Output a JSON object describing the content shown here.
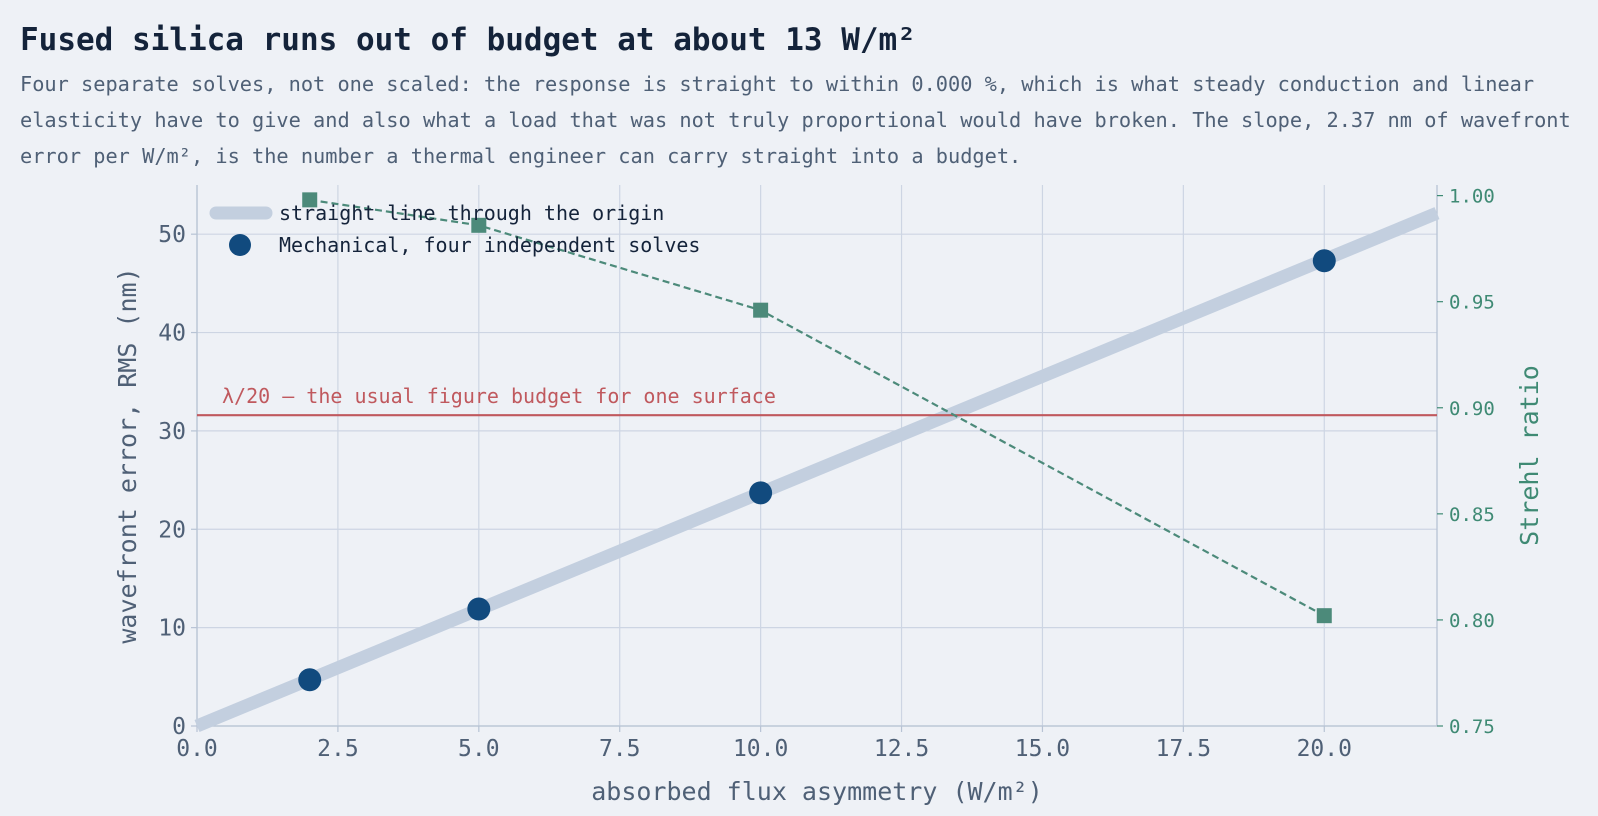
{
  "chart_data": {
    "type": "line",
    "title": "Fused silica runs out of budget at about 13 W/m²",
    "subtitle": "Four separate solves, not one scaled: the response is straight to within 0.000 %, which is what steady conduction and linear elasticity have to give and also what a load that was not truly proportional would have broken. The slope, 2.37 nm of wavefront error per W/m², is the number a thermal engineer can carry straight into a budget.",
    "xlabel": "absorbed flux asymmetry  (W/m²)",
    "ylabel": "wavefront error, RMS  (nm)",
    "y2label": "Strehl ratio",
    "xlim": [
      0,
      22
    ],
    "ylim": [
      0,
      55
    ],
    "y2lim": [
      0.75,
      1.005
    ],
    "xticks": [
      "0.0",
      "2.5",
      "5.0",
      "7.5",
      "10.0",
      "12.5",
      "15.0",
      "17.5",
      "20.0"
    ],
    "yticks": [
      "0",
      "10",
      "20",
      "30",
      "40",
      "50"
    ],
    "y2ticks": [
      "0.75",
      "0.80",
      "0.85",
      "0.90",
      "0.95",
      "1.00"
    ],
    "grid": true,
    "legend_position": "top-left",
    "series": [
      {
        "name": "straight line through the origin",
        "kind": "line",
        "color": "#c3cfdf",
        "slope": 2.37,
        "x": [
          0,
          22
        ],
        "y": [
          0,
          52.14
        ]
      },
      {
        "name": "Mechanical, four independent solves",
        "kind": "scatter",
        "color": "#114a7e",
        "x": [
          2,
          5,
          10,
          20
        ],
        "y": [
          4.7,
          11.9,
          23.7,
          47.3
        ]
      },
      {
        "kind": "line-markers",
        "axis": "right",
        "color": "#4c8a7a",
        "dashed": true,
        "x": [
          2,
          5,
          10,
          20
        ],
        "y": [
          0.998,
          0.986,
          0.946,
          0.802
        ]
      }
    ],
    "annotations": [
      {
        "text": "λ/20 — the usual figure budget for one surface",
        "kind": "hline",
        "y": 31.6,
        "color": "#c0595e"
      }
    ]
  }
}
